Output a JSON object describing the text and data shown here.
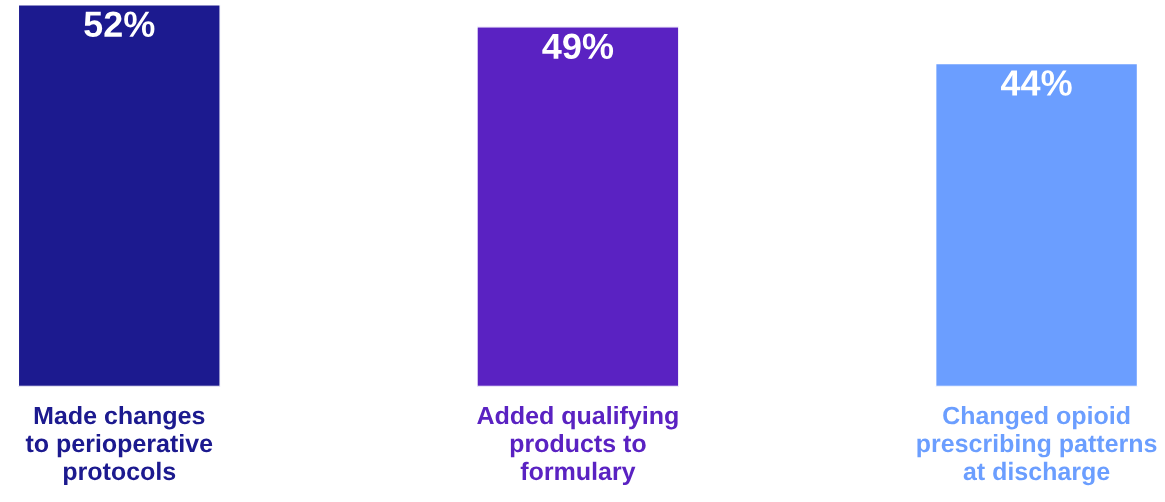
{
  "chart_data": {
    "type": "bar",
    "categories": [
      "Made changes\nto perioperative\nprotocols",
      "Added qualifying\nproducts to\nformulary",
      "Changed opioid\nprescribing patterns\nat discharge"
    ],
    "values": [
      52,
      49,
      44
    ],
    "value_labels": [
      "52%",
      "49%",
      "44%"
    ],
    "colors": [
      "#1c1a8f",
      "#5a22c2",
      "#6b9eff"
    ]
  }
}
